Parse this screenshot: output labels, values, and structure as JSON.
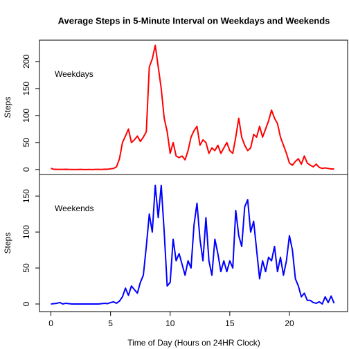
{
  "chart_data": [
    {
      "type": "line",
      "title": "Average Steps in 5-Minute Interval on Weekdays and Weekends",
      "ylabel": "Steps",
      "x": [
        0,
        0.25,
        0.5,
        0.75,
        1,
        1.25,
        1.5,
        1.75,
        2,
        2.25,
        2.5,
        2.75,
        3,
        3.25,
        3.5,
        3.75,
        4,
        4.25,
        4.5,
        4.75,
        5,
        5.25,
        5.5,
        5.75,
        6,
        6.25,
        6.5,
        6.75,
        7,
        7.25,
        7.5,
        7.75,
        8,
        8.25,
        8.5,
        8.75,
        9,
        9.25,
        9.5,
        9.75,
        10,
        10.25,
        10.5,
        10.75,
        11,
        11.25,
        11.5,
        11.75,
        12,
        12.25,
        12.5,
        12.75,
        13,
        13.25,
        13.5,
        13.75,
        14,
        14.25,
        14.5,
        14.75,
        15,
        15.25,
        15.5,
        15.75,
        16,
        16.25,
        16.5,
        16.75,
        17,
        17.25,
        17.5,
        17.75,
        18,
        18.25,
        18.5,
        18.75,
        19,
        19.25,
        19.5,
        19.75,
        20,
        20.25,
        20.5,
        20.75,
        21,
        21.25,
        21.5,
        21.75,
        22,
        22.25,
        22.5,
        22.75,
        23,
        23.25,
        23.5,
        23.75
      ],
      "series": [
        {
          "name": "Weekdays",
          "color": "#ff0000",
          "values": [
            2.3,
            0.4,
            0.2,
            0.2,
            0.3,
            0.5,
            0.2,
            0.1,
            0,
            0.1,
            0.2,
            0,
            0,
            0.1,
            0,
            0.3,
            0.2,
            0.1,
            0.6,
            0.5,
            1.4,
            2,
            5,
            20,
            50,
            62,
            75,
            50,
            55,
            62,
            52,
            60,
            70,
            190,
            205,
            230,
            190,
            150,
            95,
            70,
            30,
            50,
            25,
            22,
            25,
            18,
            35,
            60,
            72,
            80,
            45,
            55,
            50,
            30,
            40,
            35,
            45,
            30,
            40,
            50,
            35,
            30,
            60,
            95,
            60,
            45,
            35,
            40,
            65,
            60,
            80,
            60,
            75,
            90,
            110,
            95,
            85,
            60,
            45,
            30,
            12,
            8,
            15,
            20,
            10,
            25,
            12,
            8,
            5,
            10,
            4,
            2,
            3,
            2,
            1,
            1
          ]
        }
      ],
      "xlim": [
        -0.96,
        24.88
      ],
      "ylim": [
        -9.2,
        239.6
      ],
      "yticks": [
        0,
        50,
        100,
        150,
        200
      ]
    },
    {
      "type": "line",
      "xlabel": "Time of Day (Hours on 24HR Clock)",
      "ylabel": "Steps",
      "x": [
        0,
        0.25,
        0.5,
        0.75,
        1,
        1.25,
        1.5,
        1.75,
        2,
        2.25,
        2.5,
        2.75,
        3,
        3.25,
        3.5,
        3.75,
        4,
        4.25,
        4.5,
        4.75,
        5,
        5.25,
        5.5,
        5.75,
        6,
        6.25,
        6.5,
        6.75,
        7,
        7.25,
        7.5,
        7.75,
        8,
        8.25,
        8.5,
        8.75,
        9,
        9.25,
        9.5,
        9.75,
        10,
        10.25,
        10.5,
        10.75,
        11,
        11.25,
        11.5,
        11.75,
        12,
        12.25,
        12.5,
        12.75,
        13,
        13.25,
        13.5,
        13.75,
        14,
        14.25,
        14.5,
        14.75,
        15,
        15.25,
        15.5,
        15.75,
        16,
        16.25,
        16.5,
        16.75,
        17,
        17.25,
        17.5,
        17.75,
        18,
        18.25,
        18.5,
        18.75,
        19,
        19.25,
        19.5,
        19.75,
        20,
        20.25,
        20.5,
        20.75,
        21,
        21.25,
        21.5,
        21.75,
        22,
        22.25,
        22.5,
        22.75,
        23,
        23.25,
        23.5,
        23.75
      ],
      "series": [
        {
          "name": "Weekends",
          "color": "#0000ff",
          "values": [
            0,
            0.5,
            1,
            2,
            0,
            1,
            0.5,
            0,
            0,
            0,
            0,
            0,
            0,
            0,
            0,
            0,
            0,
            0.5,
            1,
            0.5,
            2,
            3,
            1,
            4,
            10,
            22,
            12,
            25,
            20,
            15,
            30,
            40,
            80,
            125,
            100,
            165,
            120,
            165,
            100,
            25,
            30,
            90,
            60,
            70,
            55,
            40,
            60,
            50,
            110,
            140,
            90,
            60,
            120,
            60,
            40,
            90,
            70,
            45,
            60,
            45,
            60,
            50,
            130,
            95,
            80,
            135,
            145,
            100,
            115,
            75,
            35,
            60,
            45,
            65,
            60,
            80,
            45,
            65,
            40,
            60,
            95,
            75,
            35,
            25,
            10,
            15,
            5,
            5,
            2,
            1,
            3,
            0,
            10,
            2,
            11,
            1
          ]
        }
      ],
      "xlim": [
        -0.96,
        24.88
      ],
      "ylim": [
        -10.6,
        180
      ],
      "xticks": [
        0,
        5,
        10,
        15,
        20
      ],
      "yticks": [
        0,
        50,
        100,
        150
      ]
    }
  ]
}
